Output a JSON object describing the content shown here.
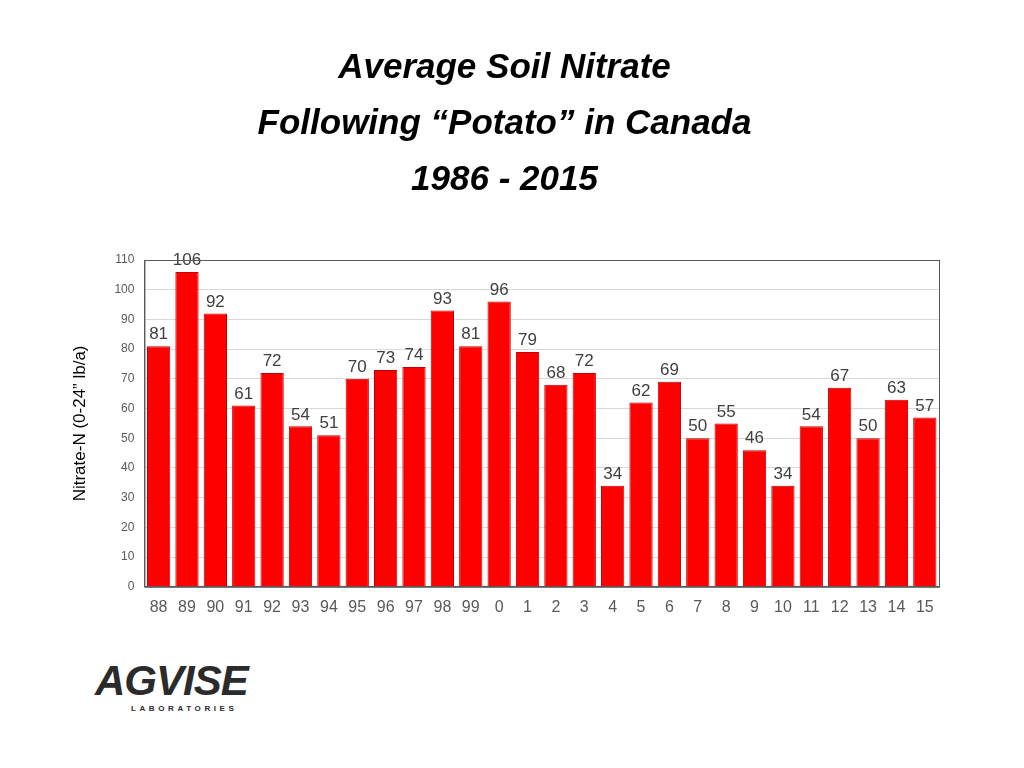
{
  "chart_data": {
    "type": "bar",
    "title": [
      "Average Soil Nitrate",
      "Following “Potato” in Canada",
      "1986 - 2015"
    ],
    "y_label": "Nitrate-N (0-24” lb/a)",
    "categories": [
      "88",
      "89",
      "90",
      "91",
      "92",
      "93",
      "94",
      "95",
      "96",
      "97",
      "98",
      "99",
      "0",
      "1",
      "2",
      "3",
      "4",
      "5",
      "6",
      "7",
      "8",
      "9",
      "10",
      "11",
      "12",
      "13",
      "14",
      "15"
    ],
    "values": [
      81,
      106,
      92,
      61,
      72,
      54,
      51,
      70,
      73,
      74,
      93,
      81,
      96,
      79,
      68,
      72,
      34,
      62,
      69,
      50,
      55,
      46,
      34,
      54,
      67,
      50,
      63,
      57
    ],
    "color": "#ff0000",
    "ylim": [
      0,
      110
    ],
    "yticks": [
      0,
      10,
      20,
      30,
      40,
      50,
      60,
      70,
      80,
      90,
      100,
      110
    ],
    "grid": true,
    "data_labels": true
  },
  "logo": {
    "text": "AGVISE",
    "subtext": "LABORATORIES"
  }
}
